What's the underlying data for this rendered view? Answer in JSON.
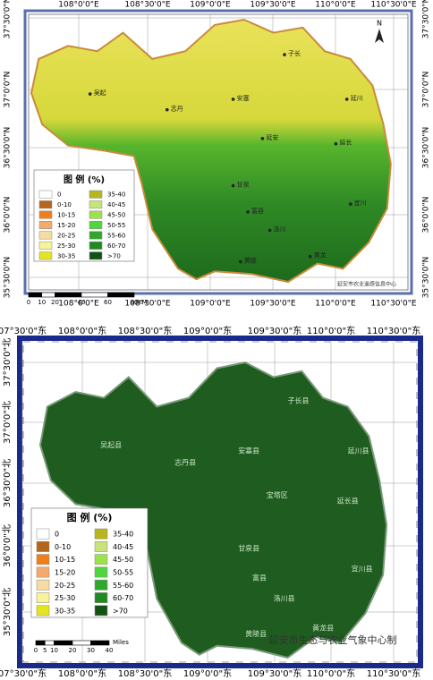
{
  "top_map": {
    "lon_labels": [
      "108°0'0\"E",
      "108°30'0\"E",
      "109°0'0\"E",
      "109°30'0\"E",
      "110°0'0\"E",
      "110°30'0\"E"
    ],
    "lat_labels": [
      "37°30'0\"N",
      "37°0'0\"N",
      "36°30'0\"N",
      "36°0'0\"N",
      "35°30'0\"N"
    ],
    "places": [
      "子长",
      "吴起",
      "志丹",
      "安塞",
      "延川",
      "延安",
      "延长",
      "甘泉",
      "富县",
      "宜川",
      "洛川",
      "黄陵",
      "黄龙"
    ],
    "legend": {
      "title": "图 例 (%)",
      "items": [
        "0",
        "0-10",
        "10-15",
        "15-20",
        "20-25",
        "25-30",
        "30-35",
        "35-40",
        "40-45",
        "45-50",
        "50-55",
        "55-60",
        "60-70",
        ">70"
      ]
    },
    "scale": {
      "ticks": [
        0,
        10,
        20,
        40,
        60,
        80
      ],
      "unit": "KM"
    },
    "north": "N",
    "credit": "延安市农业遥感信息中心"
  },
  "bottom_map": {
    "lon_labels": [
      "07°30'0\"东",
      "108°0'0\"东",
      "108°30'0\"东",
      "109°0'0\"东",
      "109°30'0\"东",
      "110°0'0\"东",
      "110°30'0\"东"
    ],
    "lat_labels": [
      "37°30'0\"北",
      "37°0'0\"北",
      "36°30'0\"北",
      "36°0'0\"北",
      "35°30'0\"北"
    ],
    "places": [
      "子长县",
      "吴起县",
      "志丹县",
      "安塞县",
      "延川县",
      "宝塔区",
      "延长县",
      "甘泉县",
      "富县",
      "宜川县",
      "洛川县",
      "黄陵县",
      "黄龙县"
    ],
    "legend": {
      "title": "图 例 (%)",
      "items": [
        "0",
        "0-10",
        "10-15",
        "15-20",
        "20-25",
        "25-30",
        "30-35",
        "35-40",
        "40-45",
        "45-50",
        "50-55",
        "55-60",
        "60-70",
        ">70"
      ]
    },
    "scale": {
      "ticks": [
        0,
        5,
        10,
        20,
        30,
        40
      ],
      "unit": "Miles"
    },
    "credit": "延安市生态与农业气象中心制"
  }
}
